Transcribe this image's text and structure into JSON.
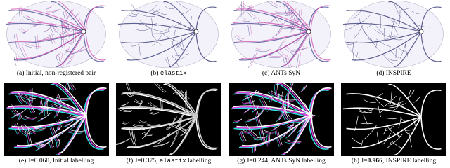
{
  "panels": [
    {
      "segments": [
        {
          "text": "(a) Initial, non-registered pair"
        }
      ]
    },
    {
      "segments": [
        {
          "text": "(b) "
        },
        {
          "text": "elastix",
          "font": "mono"
        }
      ]
    },
    {
      "segments": [
        {
          "text": "(c) ANTs SyN"
        }
      ]
    },
    {
      "segments": [
        {
          "text": "(d) INSPIRE"
        }
      ]
    },
    {
      "segments": [
        {
          "text": "(e) J=0.060, Initial labelling"
        }
      ]
    },
    {
      "segments": [
        {
          "text": "(f) J=0.375, "
        },
        {
          "text": "elastix",
          "font": "mono"
        },
        {
          "text": " labelling"
        }
      ]
    },
    {
      "segments": [
        {
          "text": "(g) J=0.244, ANTs SyN labelling"
        }
      ]
    },
    {
      "segments": [
        {
          "text": "(h) J="
        },
        {
          "text": "0.966",
          "font": "bold"
        },
        {
          "text": ", INSPIRE labelling"
        }
      ]
    }
  ]
}
